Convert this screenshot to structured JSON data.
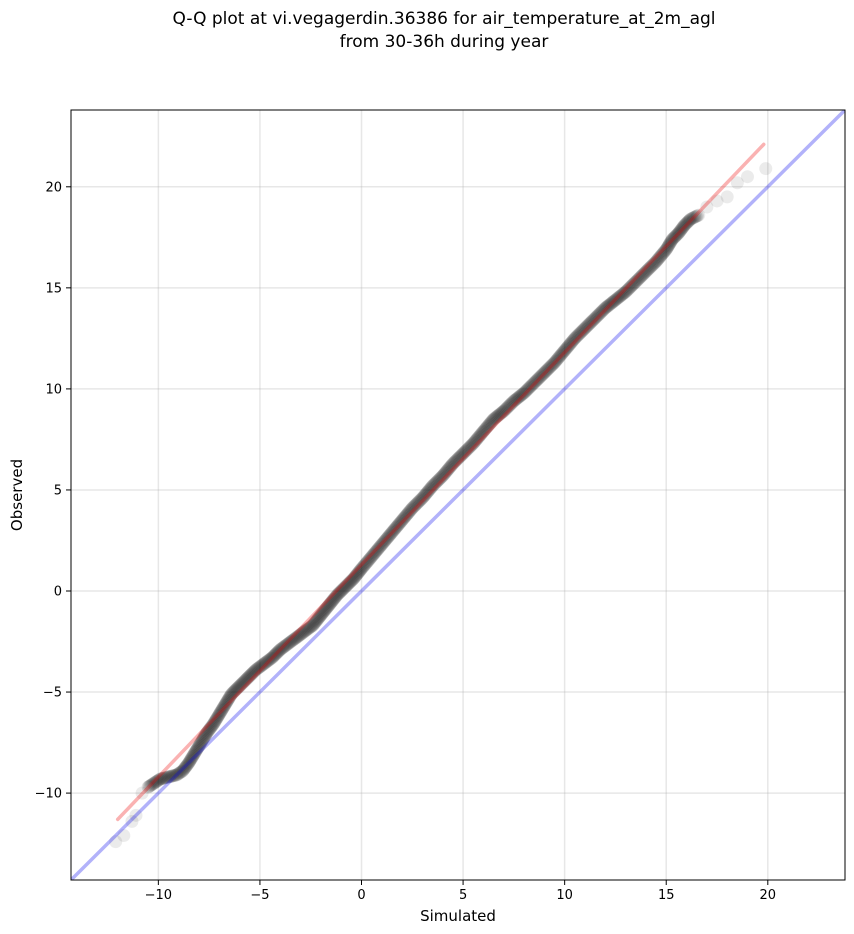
{
  "chart_data": {
    "type": "scatter",
    "title": "Q-Q plot at vi.vegagerdin.36386 for air_temperature_at_2m_agl",
    "subtitle": "from 30-36h during year",
    "xlabel": "Simulated",
    "ylabel": "Observed",
    "xlim": [
      -14.3,
      23.8
    ],
    "ylim": [
      -14.3,
      23.8
    ],
    "xticks": [
      -10,
      -5,
      0,
      5,
      10,
      15,
      20
    ],
    "yticks": [
      -10,
      -5,
      0,
      5,
      10,
      15,
      20
    ],
    "xtick_labels": [
      "−10",
      "−5",
      "0",
      "5",
      "10",
      "15",
      "20"
    ],
    "ytick_labels": [
      "−10",
      "−5",
      "0",
      "5",
      "10",
      "15",
      "20"
    ],
    "grid": true,
    "series": [
      {
        "kind": "quantile-points",
        "color": "#000000",
        "points": [
          [
            -12.1,
            -12.4
          ],
          [
            -11.7,
            -12.1
          ],
          [
            -11.3,
            -11.4
          ],
          [
            -11.1,
            -11.1
          ],
          [
            -10.8,
            -10.0
          ],
          [
            -10.5,
            -9.7
          ],
          [
            -10.2,
            -9.5
          ],
          [
            -9.9,
            -9.3
          ],
          [
            -9.5,
            -9.2
          ],
          [
            -9.1,
            -9.1
          ],
          [
            -8.8,
            -8.9
          ],
          [
            -8.5,
            -8.5
          ],
          [
            -8.2,
            -8.0
          ],
          [
            -7.9,
            -7.5
          ],
          [
            -7.6,
            -7.0
          ],
          [
            -7.3,
            -6.6
          ],
          [
            -7.0,
            -6.1
          ],
          [
            -6.7,
            -5.6
          ],
          [
            -6.4,
            -5.1
          ],
          [
            -6.0,
            -4.7
          ],
          [
            -5.6,
            -4.3
          ],
          [
            -5.2,
            -3.9
          ],
          [
            -4.8,
            -3.6
          ],
          [
            -4.4,
            -3.3
          ],
          [
            -4.0,
            -2.9
          ],
          [
            -3.6,
            -2.6
          ],
          [
            -3.2,
            -2.3
          ],
          [
            -2.8,
            -2.0
          ],
          [
            -2.4,
            -1.7
          ],
          [
            -2.0,
            -1.2
          ],
          [
            -1.6,
            -0.7
          ],
          [
            -1.2,
            -0.2
          ],
          [
            -0.8,
            0.2
          ],
          [
            -0.4,
            0.6
          ],
          [
            0.0,
            1.1
          ],
          [
            0.5,
            1.7
          ],
          [
            1.0,
            2.3
          ],
          [
            1.5,
            2.9
          ],
          [
            2.0,
            3.5
          ],
          [
            2.5,
            4.1
          ],
          [
            3.0,
            4.6
          ],
          [
            3.5,
            5.2
          ],
          [
            4.0,
            5.7
          ],
          [
            4.5,
            6.3
          ],
          [
            5.0,
            6.8
          ],
          [
            5.5,
            7.3
          ],
          [
            6.0,
            7.9
          ],
          [
            6.5,
            8.5
          ],
          [
            7.0,
            8.9
          ],
          [
            7.5,
            9.4
          ],
          [
            8.0,
            9.8
          ],
          [
            8.5,
            10.3
          ],
          [
            9.0,
            10.8
          ],
          [
            9.5,
            11.3
          ],
          [
            10.0,
            11.9
          ],
          [
            10.5,
            12.5
          ],
          [
            11.0,
            13.0
          ],
          [
            11.5,
            13.5
          ],
          [
            12.0,
            14.0
          ],
          [
            12.5,
            14.4
          ],
          [
            13.0,
            14.8
          ],
          [
            13.5,
            15.3
          ],
          [
            14.0,
            15.8
          ],
          [
            14.5,
            16.3
          ],
          [
            15.0,
            16.9
          ],
          [
            15.3,
            17.4
          ],
          [
            15.6,
            17.7
          ],
          [
            15.9,
            18.1
          ],
          [
            16.2,
            18.4
          ],
          [
            16.6,
            18.6
          ],
          [
            17.0,
            19.0
          ],
          [
            17.5,
            19.3
          ],
          [
            18.0,
            19.5
          ],
          [
            18.5,
            20.2
          ],
          [
            19.0,
            20.5
          ],
          [
            19.9,
            20.9
          ]
        ]
      },
      {
        "kind": "identity-line",
        "color": "#0000ee",
        "opacity": 0.3,
        "points": [
          [
            -14.3,
            -14.3
          ],
          [
            23.8,
            23.8
          ]
        ]
      },
      {
        "kind": "fit-line",
        "color": "#ee0000",
        "opacity": 0.3,
        "points": [
          [
            -12.0,
            -11.3
          ],
          [
            19.8,
            22.1
          ]
        ]
      }
    ]
  }
}
